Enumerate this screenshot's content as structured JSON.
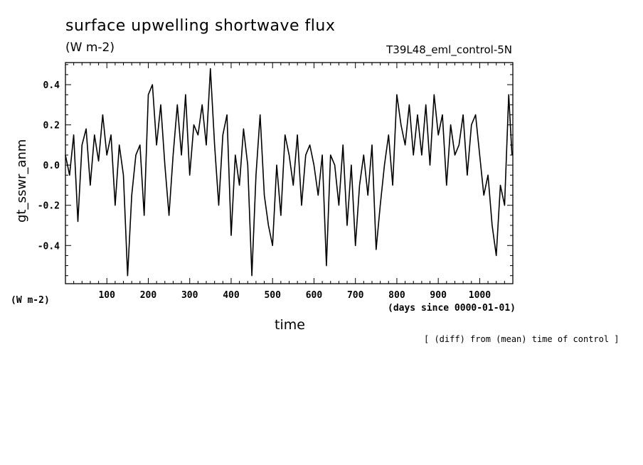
{
  "chart_data": {
    "type": "line",
    "title": "surface upwelling shortwave flux",
    "units": "(W m-2)",
    "run_label": "T39L48_eml_control-5N",
    "ylabel": "gt_sswr_anm",
    "y_units": "(W m-2)",
    "xlabel": "time",
    "x_units": "(days since 0000-01-01)",
    "note": "[ (diff) from (mean) time of control ]",
    "xlim": [
      0,
      1080
    ],
    "ylim": [
      -0.59,
      0.51
    ],
    "x_ticks": [
      100,
      200,
      300,
      400,
      500,
      600,
      700,
      800,
      900,
      1000
    ],
    "x_tick_labels": [
      "100",
      "200",
      "300",
      "400",
      "500",
      "600",
      "700",
      "800",
      "900",
      "1000"
    ],
    "y_ticks": [
      -0.4,
      -0.2,
      0.0,
      0.2,
      0.4
    ],
    "y_tick_labels": [
      "-0.4",
      "-0.2",
      "0.0",
      "0.2",
      "0.4"
    ],
    "grid": false,
    "series": [
      {
        "color": "#000000",
        "x": [
          0,
          10,
          20,
          30,
          40,
          50,
          60,
          70,
          80,
          90,
          100,
          110,
          120,
          130,
          140,
          150,
          160,
          170,
          180,
          190,
          200,
          210,
          220,
          230,
          240,
          250,
          260,
          270,
          280,
          290,
          300,
          310,
          320,
          330,
          340,
          350,
          360,
          370,
          380,
          390,
          400,
          410,
          420,
          430,
          440,
          450,
          460,
          470,
          480,
          490,
          500,
          510,
          520,
          530,
          540,
          550,
          560,
          570,
          580,
          590,
          600,
          610,
          620,
          630,
          640,
          650,
          660,
          670,
          680,
          690,
          700,
          710,
          720,
          730,
          740,
          750,
          760,
          770,
          780,
          790,
          800,
          810,
          820,
          830,
          840,
          850,
          860,
          870,
          880,
          890,
          900,
          910,
          920,
          930,
          940,
          950,
          960,
          970,
          980,
          990,
          1000,
          1010,
          1020,
          1030,
          1040,
          1050,
          1060,
          1070,
          1078
        ],
        "y": [
          0.05,
          -0.05,
          0.15,
          -0.28,
          0.1,
          0.18,
          -0.1,
          0.15,
          0.02,
          0.25,
          0.05,
          0.15,
          -0.2,
          0.1,
          -0.05,
          -0.55,
          -0.15,
          0.05,
          0.1,
          -0.25,
          0.35,
          0.4,
          0.1,
          0.3,
          0.0,
          -0.25,
          0.05,
          0.3,
          0.05,
          0.35,
          -0.05,
          0.2,
          0.15,
          0.3,
          0.1,
          0.48,
          0.1,
          -0.2,
          0.15,
          0.25,
          -0.35,
          0.05,
          -0.1,
          0.18,
          0.0,
          -0.55,
          -0.05,
          0.25,
          -0.15,
          -0.3,
          -0.4,
          0.0,
          -0.25,
          0.15,
          0.05,
          -0.1,
          0.15,
          -0.2,
          0.05,
          0.1,
          0.0,
          -0.15,
          0.05,
          -0.5,
          0.05,
          0.0,
          -0.2,
          0.1,
          -0.3,
          0.0,
          -0.4,
          -0.1,
          0.05,
          -0.15,
          0.1,
          -0.42,
          -0.2,
          0.0,
          0.15,
          -0.1,
          0.35,
          0.2,
          0.1,
          0.3,
          0.05,
          0.25,
          0.05,
          0.3,
          0.0,
          0.35,
          0.15,
          0.25,
          -0.1,
          0.2,
          0.05,
          0.1,
          0.25,
          -0.05,
          0.2,
          0.25,
          0.05,
          -0.15,
          -0.05,
          -0.3,
          -0.45,
          -0.1,
          -0.2,
          0.35,
          0.05
        ]
      }
    ]
  }
}
